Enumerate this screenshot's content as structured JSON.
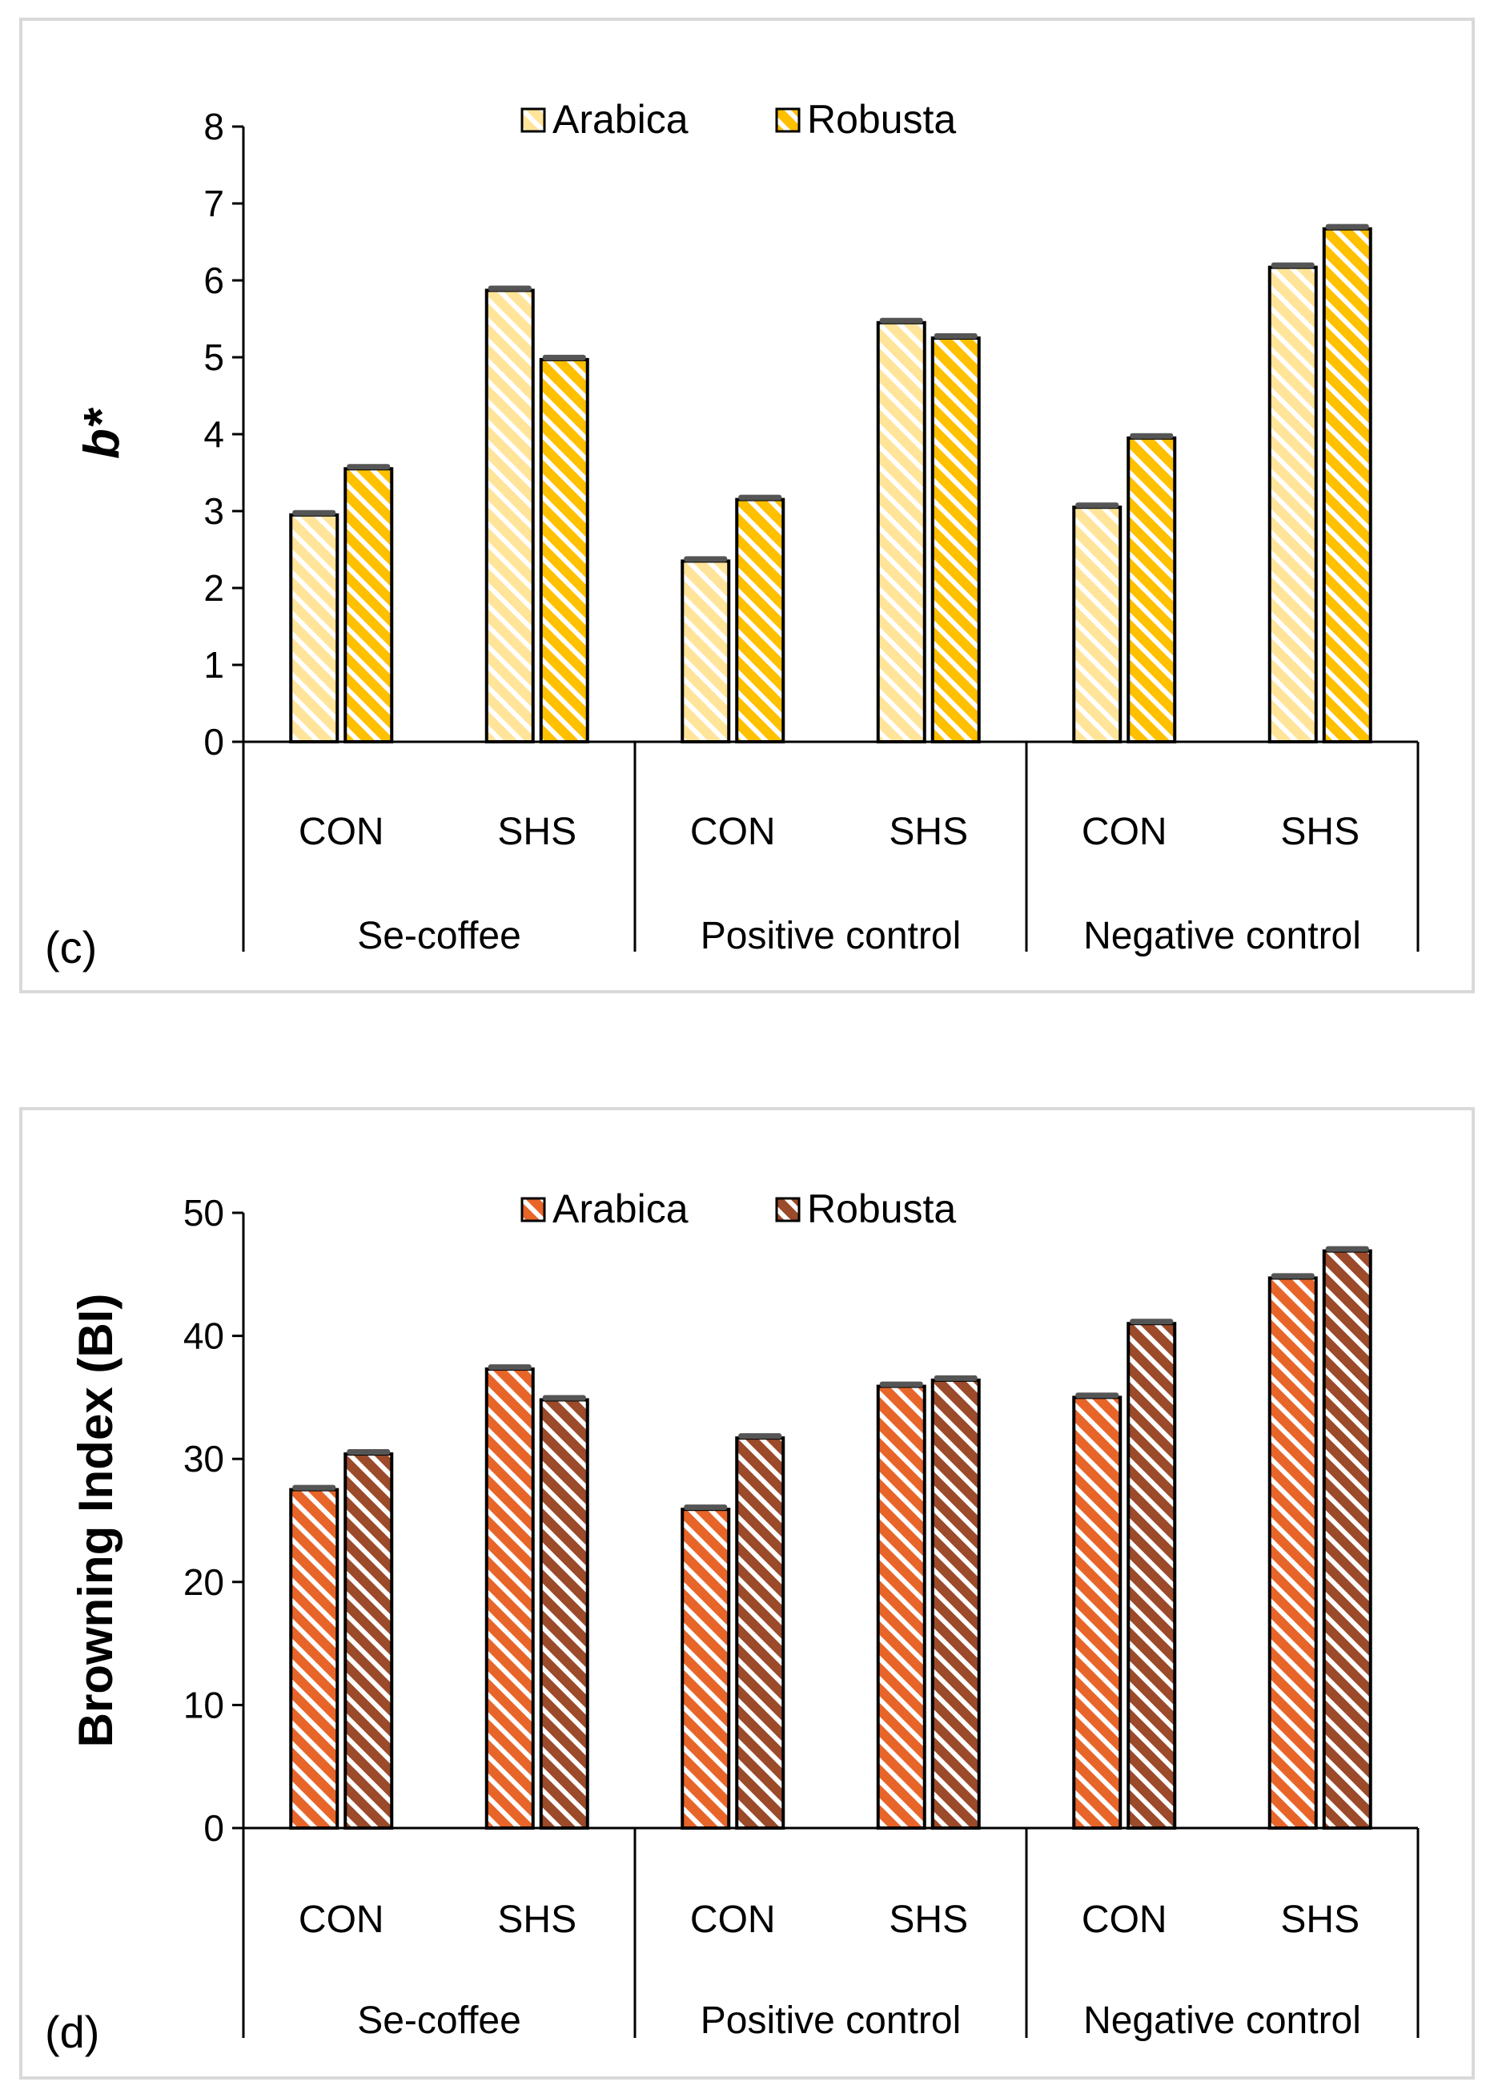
{
  "chart_data": [
    {
      "type": "bar",
      "panel_label": "(c)",
      "title": "",
      "ylabel": "b*",
      "xlabel": "",
      "ylim": [
        0,
        8
      ],
      "yticks": [
        0,
        1,
        2,
        3,
        4,
        5,
        6,
        7,
        8
      ],
      "legend_position": "top-center",
      "groups": [
        {
          "label": "Se-coffee",
          "categories": [
            "CON",
            "SHS"
          ]
        },
        {
          "label": "Positive control",
          "categories": [
            "CON",
            "SHS"
          ]
        },
        {
          "label": "Negative control",
          "categories": [
            "CON",
            "SHS"
          ]
        }
      ],
      "series": [
        {
          "name": "Arabica",
          "values": [
            2.95,
            5.87,
            2.35,
            5.45,
            3.05,
            6.17
          ],
          "fill": "#ffe49a",
          "stripe": "#ffffff",
          "edge": "#000000"
        },
        {
          "name": "Robusta",
          "values": [
            3.55,
            4.97,
            3.15,
            5.25,
            3.95,
            6.67
          ],
          "fill": "#ffc000",
          "stripe": "#ffffff",
          "edge": "#000000"
        }
      ]
    },
    {
      "type": "bar",
      "panel_label": "(d)",
      "title": "",
      "ylabel": "Browning Index (BI)",
      "xlabel": "",
      "ylim": [
        0,
        50
      ],
      "yticks": [
        0,
        10,
        20,
        30,
        40,
        50
      ],
      "legend_position": "top-center",
      "groups": [
        {
          "label": "Se-coffee",
          "categories": [
            "CON",
            "SHS"
          ]
        },
        {
          "label": "Positive control",
          "categories": [
            "CON",
            "SHS"
          ]
        },
        {
          "label": "Negative control",
          "categories": [
            "CON",
            "SHS"
          ]
        }
      ],
      "series": [
        {
          "name": "Arabica",
          "values": [
            27.5,
            37.3,
            25.9,
            35.9,
            35.0,
            44.7
          ],
          "fill": "#e8652a",
          "stripe": "#ffffff",
          "edge": "#000000"
        },
        {
          "name": "Robusta",
          "values": [
            30.4,
            34.8,
            31.7,
            36.4,
            41.0,
            46.9
          ],
          "fill": "#9b4a2a",
          "stripe": "#ffffff",
          "edge": "#000000"
        }
      ]
    }
  ]
}
